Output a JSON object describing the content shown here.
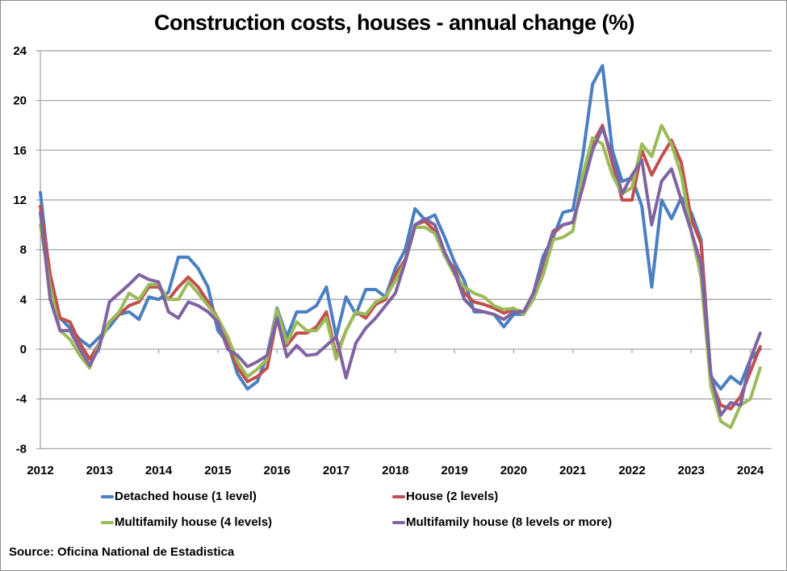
{
  "chart_data": {
    "type": "line",
    "title": "Construction costs, houses - annual change (%)",
    "xlabel": "",
    "ylabel": "",
    "ylim": [
      -8,
      24
    ],
    "yticks": [
      "-8",
      "-4",
      "0",
      "4",
      "8",
      "12",
      "16",
      "20",
      "24"
    ],
    "xticks": [
      "2012",
      "2013",
      "2014",
      "2015",
      "2016",
      "2017",
      "2018",
      "2019",
      "2020",
      "2021",
      "2022",
      "2023",
      "2024"
    ],
    "grid": "horizontal",
    "legend_position": "bottom",
    "x": [
      "2012-01",
      "2012-03",
      "2012-05",
      "2012-07",
      "2012-09",
      "2012-11",
      "2013-01",
      "2013-03",
      "2013-05",
      "2013-07",
      "2013-09",
      "2013-11",
      "2014-01",
      "2014-03",
      "2014-05",
      "2014-07",
      "2014-09",
      "2014-11",
      "2015-01",
      "2015-03",
      "2015-05",
      "2015-07",
      "2015-09",
      "2015-11",
      "2016-01",
      "2016-03",
      "2016-05",
      "2016-07",
      "2016-09",
      "2016-11",
      "2017-01",
      "2017-03",
      "2017-05",
      "2017-07",
      "2017-09",
      "2017-11",
      "2018-01",
      "2018-03",
      "2018-05",
      "2018-07",
      "2018-09",
      "2018-11",
      "2019-01",
      "2019-03",
      "2019-05",
      "2019-07",
      "2019-09",
      "2019-11",
      "2020-01",
      "2020-03",
      "2020-05",
      "2020-07",
      "2020-09",
      "2020-11",
      "2021-01",
      "2021-03",
      "2021-05",
      "2021-07",
      "2021-09",
      "2021-11",
      "2022-01",
      "2022-03",
      "2022-05",
      "2022-07",
      "2022-09",
      "2022-11",
      "2023-01",
      "2023-03",
      "2023-05",
      "2023-07",
      "2023-09",
      "2023-11",
      "2024-01",
      "2024-03"
    ],
    "series": [
      {
        "name": "Detached house (1 level)",
        "color": "#4a7fc1",
        "values": [
          12.6,
          5.5,
          2.5,
          1.7,
          0.8,
          0.2,
          1.0,
          1.8,
          2.8,
          3.0,
          2.4,
          4.2,
          4.0,
          4.6,
          7.4,
          7.4,
          6.5,
          5.0,
          1.5,
          0.5,
          -2.0,
          -3.2,
          -2.6,
          -0.5,
          3.3,
          1.0,
          3.0,
          3.0,
          3.5,
          5.0,
          1.0,
          4.2,
          2.8,
          4.8,
          4.8,
          4.2,
          6.5,
          8.0,
          11.3,
          10.4,
          10.8,
          9.0,
          7.0,
          5.5,
          3.0,
          3.0,
          2.8,
          1.8,
          2.8,
          2.8,
          4.5,
          7.5,
          9.0,
          11.0,
          11.2,
          15.5,
          21.3,
          22.8,
          16.0,
          13.5,
          13.8,
          11.5,
          5.0,
          12.0,
          10.5,
          12.2,
          11.0,
          8.8,
          -2.2,
          -3.2,
          -2.2,
          -2.8,
          -0.8,
          0.0
        ]
      },
      {
        "name": "House (2 levels)",
        "color": "#c0504d",
        "values": [
          11.5,
          6.0,
          2.5,
          2.2,
          0.5,
          -0.8,
          0.5,
          2.2,
          2.8,
          3.5,
          3.8,
          5.0,
          5.0,
          4.0,
          5.0,
          5.8,
          5.0,
          3.8,
          2.5,
          0.5,
          -1.5,
          -2.6,
          -2.2,
          -1.5,
          2.5,
          0.3,
          1.3,
          1.3,
          1.8,
          3.0,
          -0.5,
          1.5,
          3.0,
          2.5,
          3.6,
          4.0,
          6.0,
          7.2,
          10.0,
          10.3,
          9.5,
          7.5,
          6.5,
          4.5,
          3.8,
          3.6,
          3.3,
          2.9,
          3.2,
          3.0,
          4.2,
          6.7,
          9.3,
          10.0,
          10.2,
          13.0,
          16.5,
          18.0,
          15.0,
          12.0,
          12.0,
          16.0,
          14.0,
          15.5,
          16.8,
          15.0,
          10.5,
          8.5,
          -2.5,
          -4.5,
          -4.8,
          -3.8,
          -1.8,
          0.2
        ]
      },
      {
        "name": "Multifamily house (4 levels)",
        "color": "#9bbb59",
        "values": [
          10.0,
          5.0,
          1.5,
          0.8,
          -0.5,
          -1.5,
          0.5,
          2.2,
          3.0,
          4.5,
          4.0,
          5.2,
          5.2,
          4.0,
          4.0,
          5.4,
          4.5,
          3.5,
          2.5,
          1.0,
          -1.0,
          -2.2,
          -1.6,
          -0.8,
          3.2,
          0.5,
          2.2,
          1.5,
          1.5,
          2.5,
          -0.8,
          1.5,
          3.0,
          2.8,
          3.8,
          4.2,
          5.5,
          7.0,
          9.8,
          9.8,
          9.3,
          7.5,
          6.0,
          5.0,
          4.5,
          4.2,
          3.5,
          3.2,
          3.3,
          2.8,
          4.0,
          6.0,
          8.8,
          9.0,
          9.5,
          14.0,
          17.0,
          16.5,
          14.0,
          12.5,
          13.0,
          16.5,
          15.5,
          18.0,
          16.5,
          14.0,
          9.5,
          5.8,
          -3.0,
          -5.8,
          -6.3,
          -4.5,
          -4.0,
          -1.5
        ]
      },
      {
        "name": "Multifamily house (8 levels or more)",
        "color": "#8064a2",
        "values": [
          11.0,
          4.0,
          1.5,
          1.5,
          0.0,
          -1.3,
          0.2,
          3.8,
          4.5,
          5.2,
          6.0,
          5.6,
          5.4,
          3.0,
          2.5,
          3.8,
          3.5,
          3.0,
          2.2,
          0.0,
          -0.5,
          -1.4,
          -1.0,
          -0.5,
          2.5,
          -0.6,
          0.3,
          -0.5,
          -0.4,
          0.3,
          1.0,
          -2.3,
          0.5,
          1.7,
          2.5,
          3.5,
          4.5,
          7.0,
          10.0,
          10.5,
          10.0,
          7.8,
          6.2,
          4.0,
          3.2,
          3.0,
          2.8,
          2.4,
          3.0,
          3.0,
          4.5,
          7.0,
          9.5,
          10.0,
          10.2,
          13.0,
          16.0,
          17.8,
          15.5,
          12.5,
          14.0,
          15.2,
          10.0,
          13.5,
          14.5,
          12.0,
          9.5,
          6.8,
          -2.0,
          -5.3,
          -4.3,
          -4.5,
          -0.8,
          1.3
        ]
      }
    ]
  },
  "source": "Source: Oficina National de Estadistica"
}
